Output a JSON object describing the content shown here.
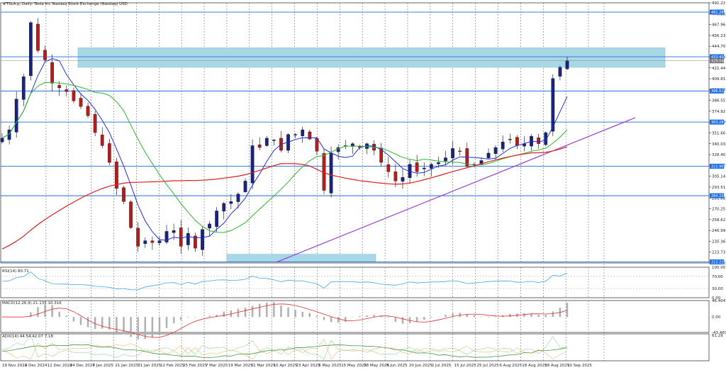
{
  "title": "#TSLA.p, Daily:  Tesla Inc Nasdaq Stock Exchange (Nasdaq) USD",
  "colors": {
    "bull": "#1a237e",
    "bear": "#b71c1c",
    "ma_fast": "#1e2fd6",
    "ma_mid": "#2cb52c",
    "ma_slow": "#e02020",
    "hline": "#1e6ee8",
    "zone": "#a8d8e6",
    "trend": "#9b3fd1",
    "rsi": "#4aa3e8",
    "macd_hist": "#b0b0b0",
    "macd_signal": "#e03030",
    "adx": "#2a8a2a"
  },
  "price_axis": {
    "ticks": [
      "491.22",
      "479.38",
      "467.96",
      "456.23",
      "444.70",
      "433.08",
      "421.44",
      "409.81",
      "398.18",
      "386.55",
      "374.92",
      "363.29",
      "351.66",
      "340.03",
      "328.40",
      "316.77",
      "305.14",
      "293.51",
      "281.88",
      "270.25",
      "258.62",
      "246.99",
      "235.36",
      "223.73",
      "212.10"
    ],
    "level_labels": [
      "481.28",
      "433.40",
      "396.62",
      "363.28",
      "315.90",
      "284.25",
      "213.22"
    ],
    "current_label": "429.04",
    "ylim": [
      212.1,
      491.22
    ]
  },
  "date_labels": [
    "19 Nov 2024",
    "2 Dec 2024",
    "12 Dec 2024",
    "24 Dec 2024",
    "7 Jan 2025",
    "21 Jan 2025",
    "31 Jan 2025",
    "12 Feb 2025",
    "25 Feb 2025",
    "7 Mar 2025",
    "19 Mar 2025",
    "31 Mar 2025",
    "10 Apr 2025",
    "23 Apr 2025",
    "5 May 2025",
    "15 May 2025",
    "28 May 2025",
    "9 Jun 2025",
    "20 Jun 2025",
    "2 Jul 2025",
    "15 Jul 2025",
    "25 Jul 2025",
    "6 Aug 2025",
    "18 Aug 2025",
    "28 Aug 2025",
    "10 Sep 2025"
  ],
  "indicators": {
    "rsi": {
      "label": "RSI(14) 80.71",
      "ticks": [
        "100.00",
        "70.00",
        "30.00",
        "0.00"
      ]
    },
    "macd": {
      "label": "MACD(12,26,9) 21.135 10.316",
      "ticks": [
        "46.404",
        "0.00",
        "-43.460"
      ]
    },
    "adx": {
      "label": "ADX(14) 44.54 42.07 7.18",
      "ticks": [
        "61.29"
      ]
    }
  },
  "chart_data": {
    "type": "candlestick",
    "title": "#TSLA.p, Daily:  Tesla Inc Nasdaq Stock Exchange (Nasdaq) USD",
    "x": [
      "19 Nov 2024",
      "2 Dec 2024",
      "12 Dec 2024",
      "24 Dec 2024",
      "7 Jan 2025",
      "21 Jan 2025",
      "31 Jan 2025",
      "12 Feb 2025",
      "25 Feb 2025",
      "7 Mar 2025",
      "19 Mar 2025",
      "31 Mar 2025",
      "10 Apr 2025",
      "23 Apr 2025",
      "5 May 2025",
      "15 May 2025",
      "28 May 2025",
      "9 Jun 2025",
      "20 Jun 2025",
      "2 Jul 2025",
      "15 Jul 2025",
      "25 Jul 2025",
      "6 Aug 2025",
      "18 Aug 2025",
      "28 Aug 2025",
      "10 Sep 2025"
    ],
    "close_path": [
      346,
      355,
      388,
      412,
      470,
      440,
      430,
      405,
      400,
      396,
      386,
      380,
      370,
      352,
      338,
      320,
      292,
      278,
      250,
      230,
      236,
      234,
      236,
      246,
      247,
      230,
      244,
      228,
      248,
      254,
      268,
      276,
      278,
      286,
      300,
      338,
      336,
      346,
      344,
      333,
      350,
      350,
      355,
      345,
      332,
      290,
      330,
      336,
      338,
      340,
      336,
      340,
      333,
      320,
      310,
      300,
      304,
      318,
      310,
      314,
      318,
      320,
      325,
      335,
      332,
      316,
      318,
      322,
      330,
      336,
      342,
      345,
      338,
      340,
      348,
      340,
      352,
      410,
      422,
      429
    ],
    "ylim": [
      212.1,
      491.22
    ],
    "horizontal_levels": [
      481.28,
      433.4,
      396.62,
      363.28,
      315.9,
      284.25,
      213.22
    ],
    "resistance_zone": [
      422.0,
      443.0
    ],
    "support_zone": [
      213.5,
      221.5
    ],
    "current_price": 429.04
  }
}
